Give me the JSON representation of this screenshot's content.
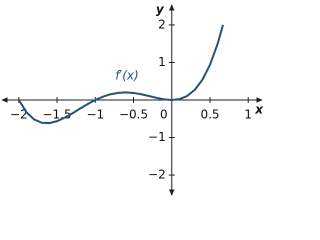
{
  "chart_data": {
    "type": "line",
    "annotation": "f′(x)",
    "x_label": "x",
    "y_label": "y",
    "x": [
      -2,
      -1.9,
      -1.8,
      -1.7,
      -1.6,
      -1.5,
      -1.4,
      -1.3,
      -1.2,
      -1.1,
      -1,
      -0.9,
      -0.8,
      -0.7,
      -0.6,
      -0.5,
      -0.4,
      -0.3,
      -0.2,
      -0.1,
      0,
      0.1,
      0.2,
      0.3,
      0.4,
      0.5,
      0.6,
      0.67
    ],
    "series": [
      {
        "name": "f′(x)",
        "color": "#24527f",
        "values": [
          0,
          -0.325,
          -0.518,
          -0.607,
          -0.614,
          -0.563,
          -0.47,
          -0.355,
          -0.23,
          -0.109,
          0,
          0.089,
          0.154,
          0.191,
          0.202,
          0.188,
          0.154,
          0.107,
          0.058,
          0.017,
          0,
          0.023,
          0.106,
          0.269,
          0.538,
          0.938,
          1.498,
          2.0
        ]
      }
    ],
    "xlim": [
      -2.22,
      1.18
    ],
    "ylim": [
      -2.53,
      2.53
    ],
    "xticks": [
      {
        "value": -2,
        "label": "−2"
      },
      {
        "value": -1.5,
        "label": "−1.5"
      },
      {
        "value": -1,
        "label": "−1"
      },
      {
        "value": -0.5,
        "label": "−0.5"
      },
      0,
      0.5,
      1
    ],
    "yticks": [
      {
        "value": -2,
        "label": "−2"
      },
      {
        "value": -1,
        "label": "−1"
      },
      1,
      2
    ]
  }
}
